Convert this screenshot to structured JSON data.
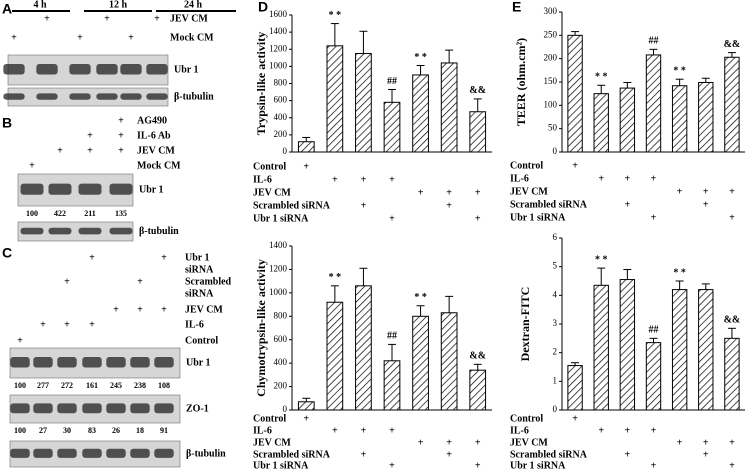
{
  "chart_data": [
    {
      "type": "bar",
      "label": "D",
      "ylabel": "Trypsin-like activity",
      "values": [
        120,
        1240,
        1150,
        580,
        900,
        1040,
        470
      ],
      "errors": [
        50,
        260,
        260,
        150,
        110,
        150,
        150
      ],
      "annotations": [
        null,
        "* *",
        null,
        "##",
        "* *",
        null,
        "&&"
      ],
      "ylim": [
        0,
        1600
      ],
      "yticks": [
        0,
        200,
        400,
        600,
        800,
        1000,
        1200,
        1400,
        1600
      ],
      "color": "#000000",
      "hatch": true,
      "plus_sign": "+",
      "treatments": [
        {
          "label": "Control",
          "plus": [
            true,
            false,
            false,
            false,
            false,
            false,
            false
          ]
        },
        {
          "label": "IL-6",
          "plus": [
            false,
            true,
            true,
            true,
            false,
            false,
            false
          ]
        },
        {
          "label": "JEV CM",
          "plus": [
            false,
            false,
            false,
            false,
            true,
            true,
            true
          ]
        },
        {
          "label": "Scrambled siRNA",
          "plus": [
            false,
            false,
            true,
            false,
            false,
            true,
            false
          ]
        },
        {
          "label": "Ubr 1 siRNA",
          "plus": [
            false,
            false,
            false,
            true,
            false,
            false,
            true
          ]
        }
      ]
    },
    {
      "type": "bar",
      "ylabel": "Chymotrypsin-like activity",
      "values": [
        70,
        920,
        1060,
        420,
        800,
        830,
        340
      ],
      "errors": [
        30,
        140,
        150,
        140,
        90,
        140,
        50
      ],
      "annotations": [
        null,
        "* *",
        null,
        "##",
        "* *",
        null,
        "&&"
      ],
      "ylim": [
        0,
        1400
      ],
      "yticks": [
        0,
        200,
        400,
        600,
        800,
        1000,
        1200,
        1400
      ],
      "color": "#000000",
      "hatch": true,
      "plus_sign": "+",
      "treatments": [
        {
          "label": "Control",
          "plus": [
            true,
            false,
            false,
            false,
            false,
            false,
            false
          ]
        },
        {
          "label": "IL-6",
          "plus": [
            false,
            true,
            true,
            true,
            false,
            false,
            false
          ]
        },
        {
          "label": "JEV CM",
          "plus": [
            false,
            false,
            false,
            false,
            true,
            true,
            true
          ]
        },
        {
          "label": "Scrambled siRNA",
          "plus": [
            false,
            false,
            true,
            false,
            false,
            true,
            false
          ]
        },
        {
          "label": "Ubr 1 siRNA",
          "plus": [
            false,
            false,
            false,
            true,
            false,
            false,
            true
          ]
        }
      ]
    },
    {
      "type": "bar",
      "label": "E",
      "ylabel": "TEER (ohm.cm²)",
      "values": [
        250,
        125,
        137,
        208,
        142,
        149,
        203
      ],
      "errors": [
        8,
        18,
        12,
        12,
        14,
        9,
        10
      ],
      "annotations": [
        null,
        "* *",
        null,
        "##",
        "* *",
        null,
        "&&"
      ],
      "ylim": [
        0,
        300
      ],
      "yticks": [
        0,
        50,
        100,
        150,
        200,
        250,
        300
      ],
      "color": "#000000",
      "hatch": true,
      "plus_sign": "+",
      "treatments": [
        {
          "label": "Control",
          "plus": [
            true,
            false,
            false,
            false,
            false,
            false,
            false
          ]
        },
        {
          "label": "IL-6",
          "plus": [
            false,
            true,
            true,
            true,
            false,
            false,
            false
          ]
        },
        {
          "label": "JEV CM",
          "plus": [
            false,
            false,
            false,
            false,
            true,
            true,
            true
          ]
        },
        {
          "label": "Scrambled siRNA",
          "plus": [
            false,
            false,
            true,
            false,
            false,
            true,
            false
          ]
        },
        {
          "label": "Ubr 1 siRNA",
          "plus": [
            false,
            false,
            false,
            true,
            false,
            false,
            true
          ]
        }
      ]
    },
    {
      "type": "bar",
      "ylabel": "Dextran-FITC",
      "values": [
        1.55,
        4.35,
        4.55,
        2.35,
        4.2,
        4.2,
        2.5
      ],
      "errors": [
        0.1,
        0.6,
        0.35,
        0.15,
        0.3,
        0.2,
        0.35
      ],
      "annotations": [
        null,
        "* *",
        null,
        "##",
        "* *",
        null,
        "&&"
      ],
      "ylim": [
        0,
        6
      ],
      "yticks": [
        0,
        1,
        2,
        3,
        4,
        5,
        6
      ],
      "color": "#000000",
      "hatch": true,
      "plus_sign": "+",
      "treatments": [
        {
          "label": "Control",
          "plus": [
            true,
            false,
            false,
            false,
            false,
            false,
            false
          ]
        },
        {
          "label": "IL-6",
          "plus": [
            false,
            true,
            true,
            true,
            false,
            false,
            false
          ]
        },
        {
          "label": "JEV CM",
          "plus": [
            false,
            false,
            false,
            false,
            true,
            true,
            true
          ]
        },
        {
          "label": "Scrambled siRNA",
          "plus": [
            false,
            false,
            true,
            false,
            false,
            true,
            false
          ]
        },
        {
          "label": "Ubr 1 siRNA",
          "plus": [
            false,
            false,
            false,
            true,
            false,
            false,
            true
          ]
        }
      ]
    }
  ],
  "blot_panels": [
    {
      "label": "A",
      "plus_sign": "+",
      "time_labels": [
        "4 h",
        "12 h",
        "24 h"
      ],
      "rows": [
        {
          "label": [
            "JEV CM"
          ],
          "plus": [
            false,
            true,
            false,
            true,
            false,
            true
          ]
        },
        {
          "label": [
            "Mock CM"
          ],
          "plus": [
            true,
            false,
            true,
            false,
            true,
            false
          ]
        }
      ],
      "blots": [
        {
          "label": "Ubr 1"
        },
        {
          "label": "β-tubulin"
        }
      ]
    },
    {
      "label": "B",
      "plus_sign": "+",
      "rows": [
        {
          "label": [
            "AG490"
          ],
          "plus": [
            false,
            false,
            false,
            true
          ]
        },
        {
          "label": [
            "IL-6 Ab"
          ],
          "plus": [
            false,
            false,
            true,
            true
          ]
        },
        {
          "label": [
            "JEV CM"
          ],
          "plus": [
            false,
            true,
            true,
            true
          ]
        },
        {
          "label": [
            "Mock CM"
          ],
          "plus": [
            true,
            false,
            false,
            false
          ]
        }
      ],
      "blots": [
        {
          "label": "Ubr 1",
          "numbers": [
            100,
            422,
            211,
            135
          ]
        },
        {
          "label": "β-tubulin"
        }
      ]
    },
    {
      "label": "C",
      "plus_sign": "+",
      "rows": [
        {
          "label": [
            "Ubr 1",
            "siRNA"
          ],
          "plus": [
            false,
            false,
            false,
            true,
            false,
            false,
            true
          ]
        },
        {
          "label": [
            "Scrambled",
            "siRNA"
          ],
          "plus": [
            false,
            false,
            true,
            false,
            false,
            true,
            false
          ]
        },
        {
          "label": [
            "JEV CM"
          ],
          "plus": [
            false,
            false,
            false,
            false,
            true,
            true,
            true
          ]
        },
        {
          "label": [
            "IL-6"
          ],
          "plus": [
            false,
            true,
            true,
            true,
            false,
            false,
            false
          ]
        },
        {
          "label": [
            "Control"
          ],
          "plus": [
            true,
            false,
            false,
            false,
            false,
            false,
            false
          ]
        }
      ],
      "blots": [
        {
          "label": "Ubr 1",
          "numbers": [
            100,
            277,
            272,
            161,
            245,
            238,
            108
          ]
        },
        {
          "label": "ZO-1",
          "numbers": [
            100,
            27,
            30,
            83,
            26,
            18,
            91
          ]
        },
        {
          "label": "β-tubulin"
        }
      ]
    }
  ]
}
